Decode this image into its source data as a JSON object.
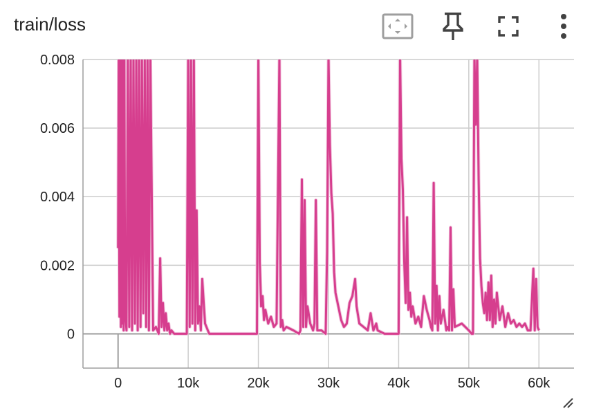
{
  "header": {
    "title": "train/loss",
    "icons": [
      "fit-domain-icon",
      "pin-icon",
      "fullscreen-icon",
      "more-vert-icon"
    ]
  },
  "colors": {
    "series": "#d63e8e",
    "smoothed_light": "#f1c8df",
    "grid": "#cccccc",
    "axis": "#9e9e9e"
  },
  "chart_data": {
    "type": "line",
    "xlabel": "",
    "ylabel": "",
    "xlim": [
      -5000,
      65000
    ],
    "ylim": [
      -0.001,
      0.008
    ],
    "xticks": [
      "0",
      "10k",
      "20k",
      "30k",
      "40k",
      "50k",
      "60k"
    ],
    "xtick_values": [
      0,
      10000,
      20000,
      30000,
      40000,
      50000,
      60000
    ],
    "yticks": [
      "0",
      "0.002",
      "0.004",
      "0.006",
      "0.008"
    ],
    "ytick_values": [
      0,
      0.002,
      0.004,
      0.006,
      0.008
    ],
    "grid": true,
    "series": [
      {
        "x": [
          0,
          100,
          200,
          300,
          400,
          500,
          600,
          700,
          800,
          900,
          1000,
          1200,
          1400,
          1600,
          1800,
          2000,
          2200,
          2400,
          2600,
          2800,
          3000,
          3200,
          3400,
          3600,
          3800,
          4000,
          4200,
          4400,
          4600,
          5000,
          5400,
          5800,
          6000,
          6200,
          6400,
          6600,
          6800,
          7000,
          7200,
          7400,
          7600,
          8000,
          9000,
          9800,
          10000,
          10200,
          10400,
          10600,
          10800,
          11000,
          11200,
          11400,
          11600,
          11800,
          12000,
          12400,
          12800,
          13000,
          13400,
          14000,
          16000,
          18000,
          19800,
          20000,
          20200,
          20400,
          20600,
          20800,
          21000,
          21400,
          21800,
          22200,
          22600,
          23000,
          23200,
          23400,
          23600,
          24000,
          25000,
          25800,
          26000,
          26200,
          26400,
          26600,
          26800,
          27000,
          27400,
          27800,
          28000,
          28200,
          28400,
          29000,
          29600,
          29800,
          30000,
          30200,
          30400,
          30600,
          30800,
          31000,
          31400,
          31800,
          32200,
          32600,
          33000,
          33400,
          33800,
          34000,
          34400,
          35000,
          35600,
          36000,
          36400,
          36800,
          37000,
          38000,
          39000,
          39800,
          40000,
          40200,
          40400,
          40600,
          40800,
          41000,
          41200,
          41400,
          41600,
          41800,
          42000,
          42400,
          42800,
          43200,
          43600,
          44000,
          44400,
          44600,
          44800,
          45000,
          45200,
          45400,
          45600,
          45800,
          46000,
          46400,
          46800,
          47000,
          47200,
          47400,
          47600,
          47800,
          48000,
          49000,
          50000,
          50400,
          50600,
          50800,
          51000,
          51200,
          51400,
          51600,
          51800,
          52000,
          52200,
          52400,
          52600,
          52800,
          53000,
          53200,
          53400,
          53600,
          53800,
          54000,
          54400,
          54800,
          55200,
          55600,
          56000,
          56400,
          56800,
          57200,
          57600,
          58000,
          58400,
          58800,
          59200,
          59400,
          59600,
          59800,
          60000
        ],
        "y": [
          0.0025,
          0.0081,
          0.0005,
          0.0081,
          0.0002,
          0.0081,
          0.0003,
          0.0081,
          0.0001,
          0.0081,
          0.0006,
          0.0001,
          0.0081,
          0.0002,
          0.0081,
          0.0001,
          0.0081,
          0.0003,
          0.0081,
          0.0001,
          0.0081,
          0.0002,
          0.0081,
          0.0006,
          0.0081,
          0.0002,
          0.0081,
          0.0001,
          0.0081,
          0.0001,
          0.0002,
          0.0,
          0.0022,
          0.0002,
          0.0009,
          0.0001,
          0.0006,
          0.0001,
          0.0003,
          0.0,
          0.0001,
          0.0,
          0.0,
          0.0,
          0.0081,
          0.0002,
          0.0081,
          0.0003,
          0.0081,
          0.0001,
          0.0036,
          0.0003,
          0.0008,
          0.0001,
          0.0016,
          0.0003,
          0.0001,
          0.0,
          0.0,
          0.0,
          0.0,
          0.0,
          0.0,
          0.0081,
          0.0021,
          0.0008,
          0.0011,
          0.0004,
          0.0007,
          0.0003,
          0.0005,
          0.0002,
          0.0003,
          0.0081,
          0.0002,
          0.0004,
          0.0001,
          0.0002,
          0.0001,
          0.0,
          0.0001,
          0.0045,
          0.0002,
          0.0039,
          0.0002,
          0.0008,
          0.0003,
          0.0001,
          0.0003,
          0.0039,
          0.0001,
          0.0001,
          0.0,
          0.0024,
          0.0081,
          0.0055,
          0.0041,
          0.0035,
          0.0018,
          0.0012,
          0.0008,
          0.0004,
          0.0002,
          0.0003,
          0.0009,
          0.0011,
          0.0016,
          0.0008,
          0.0003,
          0.0002,
          0.0001,
          0.0006,
          0.0001,
          0.0003,
          0.0001,
          0.0,
          0.0,
          0.0,
          0.0,
          0.0081,
          0.0051,
          0.0042,
          0.0021,
          0.0009,
          0.0034,
          0.0007,
          0.0012,
          0.0005,
          0.0008,
          0.0003,
          0.0005,
          0.0002,
          0.0011,
          0.0007,
          0.0004,
          0.0002,
          0.0001,
          0.0044,
          0.0003,
          0.0014,
          0.0001,
          0.0011,
          0.0003,
          0.0007,
          0.0001,
          0.0002,
          0.0001,
          0.0031,
          0.0001,
          0.0013,
          0.0002,
          0.0003,
          0.0001,
          0.0,
          0.0,
          0.0081,
          0.0061,
          0.0081,
          0.0045,
          0.0022,
          0.0014,
          0.0009,
          0.0006,
          0.0012,
          0.0004,
          0.0015,
          0.0004,
          0.0017,
          0.0002,
          0.001,
          0.0003,
          0.0012,
          0.0004,
          0.0008,
          0.0002,
          0.0006,
          0.0003,
          0.0004,
          0.0002,
          0.0003,
          0.0002,
          0.0003,
          0.0001,
          0.0001,
          0.0019,
          0.0001,
          0.0016,
          0.0002,
          0.0001
        ]
      }
    ]
  }
}
